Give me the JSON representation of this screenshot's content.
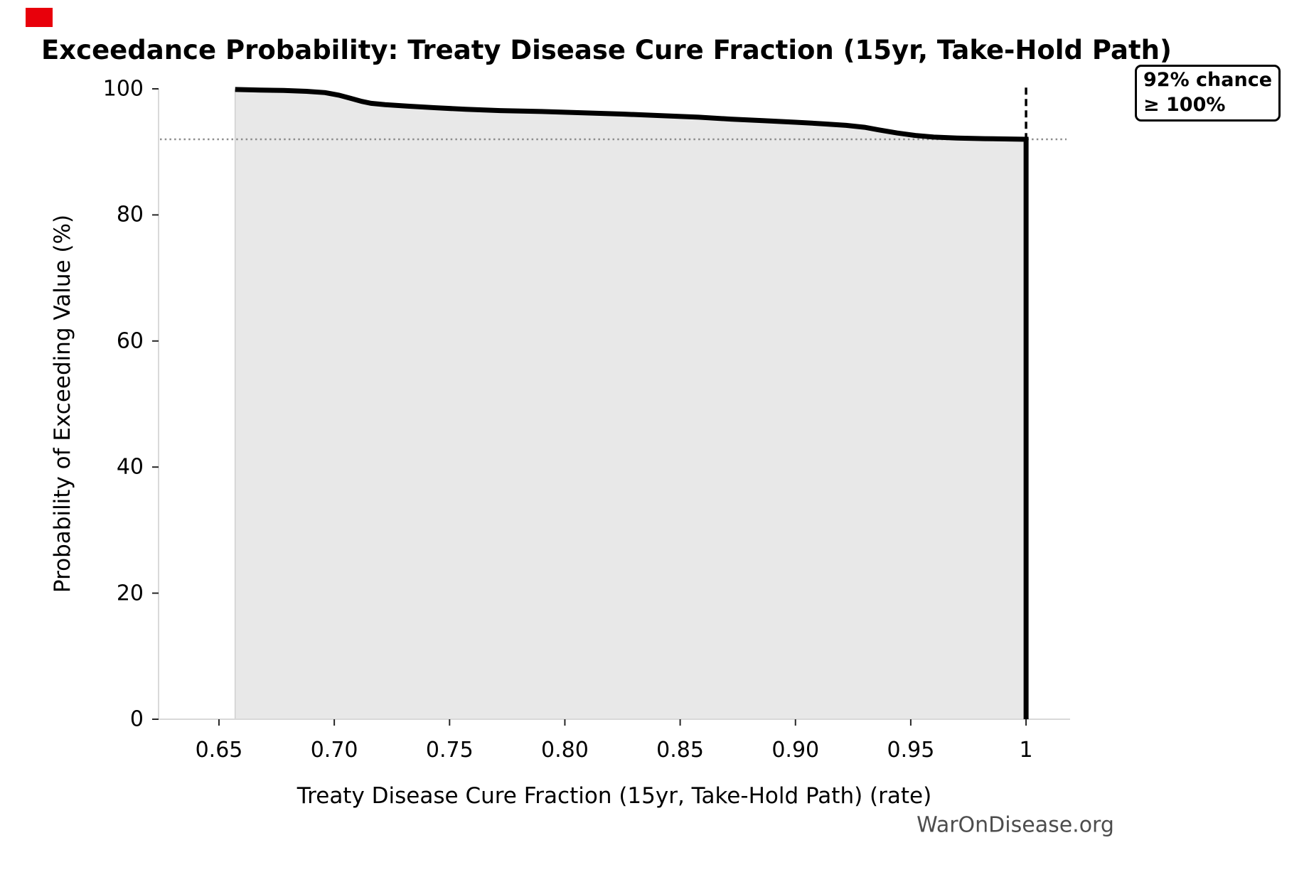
{
  "marker": {
    "color": "#e8000b"
  },
  "title": "Exceedance Probability: Treaty Disease Cure Fraction (15yr, Take-Hold Path)",
  "annotation": {
    "line1": "92% chance",
    "line2": "≥ 100%"
  },
  "watermark": "WarOnDisease.org",
  "chart_data": {
    "type": "area",
    "title": "Exceedance Probability: Treaty Disease Cure Fraction (15yr, Take-Hold Path)",
    "xlabel": "Treaty Disease Cure Fraction (15yr, Take-Hold Path) (rate)",
    "ylabel": "Probability of Exceeding Value (%)",
    "xlim": [
      0.6238,
      1.0191
    ],
    "ylim": [
      0,
      100
    ],
    "grid": false,
    "legend": false,
    "x_ticks": [
      0.65,
      0.7,
      0.75,
      0.8,
      0.85,
      0.9,
      0.95,
      1.0
    ],
    "x_tick_labels": [
      "0.65",
      "0.70",
      "0.75",
      "0.80",
      "0.85",
      "0.90",
      "0.95",
      "1"
    ],
    "y_ticks": [
      0,
      20,
      40,
      60,
      80,
      100
    ],
    "y_tick_labels": [
      "0",
      "20",
      "40",
      "60",
      "80",
      "100"
    ],
    "series": [
      {
        "name": "exceedance-probability",
        "points": [
          [
            0.657,
            99.9
          ],
          [
            0.668,
            99.8
          ],
          [
            0.678,
            99.75
          ],
          [
            0.688,
            99.6
          ],
          [
            0.696,
            99.4
          ],
          [
            0.702,
            99.0
          ],
          [
            0.707,
            98.5
          ],
          [
            0.712,
            98.0
          ],
          [
            0.716,
            97.7
          ],
          [
            0.722,
            97.5
          ],
          [
            0.732,
            97.25
          ],
          [
            0.744,
            97.0
          ],
          [
            0.757,
            96.75
          ],
          [
            0.772,
            96.55
          ],
          [
            0.79,
            96.4
          ],
          [
            0.808,
            96.2
          ],
          [
            0.825,
            96.0
          ],
          [
            0.842,
            95.75
          ],
          [
            0.858,
            95.5
          ],
          [
            0.872,
            95.2
          ],
          [
            0.886,
            94.95
          ],
          [
            0.9,
            94.7
          ],
          [
            0.912,
            94.45
          ],
          [
            0.922,
            94.2
          ],
          [
            0.93,
            93.9
          ],
          [
            0.936,
            93.5
          ],
          [
            0.944,
            93.0
          ],
          [
            0.952,
            92.6
          ],
          [
            0.96,
            92.35
          ],
          [
            0.97,
            92.2
          ],
          [
            0.982,
            92.1
          ],
          [
            1.0,
            92.0
          ]
        ]
      }
    ],
    "final_vertical_drop": {
      "x": 1.0,
      "from": 92.0,
      "to": 0
    },
    "reference_lines": {
      "dotted_horizontal": {
        "y": 92.0,
        "style": "dotted",
        "color": "#8c8c8c"
      },
      "dashed_vertical": {
        "x": 1.0,
        "y_from": 100.2,
        "y_to": 92.0,
        "style": "dashed",
        "color": "#000000"
      }
    },
    "fill_color": "#e8e8e8",
    "fill_edge_color": "#cfcfcf",
    "line_color": "#000000",
    "spine_color": "#d9d9d9",
    "tick_color": "#262626"
  }
}
